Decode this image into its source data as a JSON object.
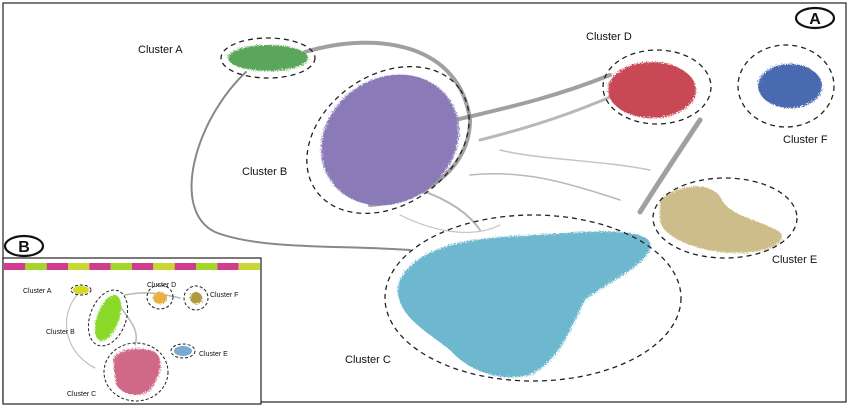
{
  "panel_a": {
    "badge": "A",
    "clusters": [
      {
        "id": "a",
        "label": "Cluster A",
        "color": "#5aa65a"
      },
      {
        "id": "b",
        "label": "Cluster B",
        "color": "#8a7ab8"
      },
      {
        "id": "c",
        "label": "Cluster C",
        "color": "#6db8cf"
      },
      {
        "id": "d",
        "label": "Cluster D",
        "color": "#c84a55"
      },
      {
        "id": "e",
        "label": "Cluster E",
        "color": "#cdbd8a"
      },
      {
        "id": "f",
        "label": "Cluster F",
        "color": "#4a6ab0"
      }
    ]
  },
  "panel_b": {
    "badge": "B",
    "clusters": [
      {
        "id": "a",
        "label": "Cluster A",
        "color": "#d8d820"
      },
      {
        "id": "b",
        "label": "Cluster B",
        "color": "#8ad82a"
      },
      {
        "id": "c",
        "label": "Cluster C",
        "color": "#d06888"
      },
      {
        "id": "d",
        "label": "Cluster D",
        "color": "#e8b040"
      },
      {
        "id": "e",
        "label": "Cluster E",
        "color": "#7aaad0"
      },
      {
        "id": "f",
        "label": "Cluster F",
        "color": "#b09a40"
      }
    ],
    "color_strip": [
      "#d23c8c",
      "#a4d62a",
      "#d23c8c",
      "#c8d830",
      "#d23c8c",
      "#a4d62a",
      "#d23c8c",
      "#c8d830",
      "#d23c8c",
      "#a4d62a",
      "#d23c8c",
      "#c8d830"
    ]
  },
  "colors": {
    "edge": "#888888",
    "frame": "#222222"
  }
}
